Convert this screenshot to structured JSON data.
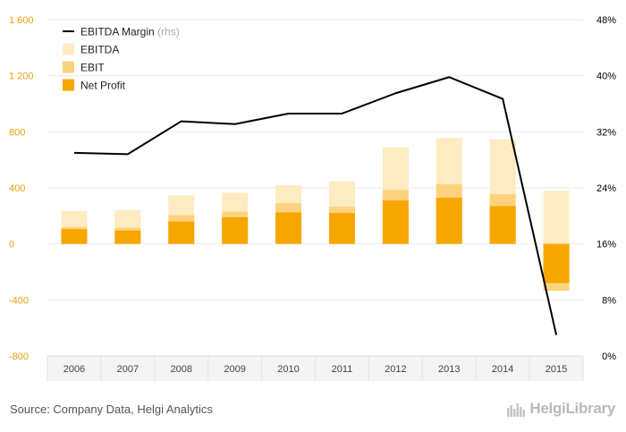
{
  "chart_data": {
    "type": "bar",
    "categories": [
      "2006",
      "2007",
      "2008",
      "2009",
      "2010",
      "2011",
      "2012",
      "2013",
      "2014",
      "2015"
    ],
    "series": [
      {
        "name": "EBITDA",
        "type": "bar",
        "axis": "left",
        "values": [
          235,
          240,
          345,
          365,
          420,
          445,
          690,
          755,
          745,
          380
        ]
      },
      {
        "name": "EBIT",
        "type": "bar",
        "axis": "left",
        "values": [
          120,
          115,
          205,
          230,
          290,
          265,
          385,
          425,
          355,
          -335
        ]
      },
      {
        "name": "Net Profit",
        "type": "bar",
        "axis": "left",
        "values": [
          105,
          95,
          160,
          190,
          225,
          220,
          310,
          330,
          270,
          -280
        ]
      },
      {
        "name": "EBITDA Margin",
        "type": "line",
        "axis": "right",
        "unit": "%",
        "values": [
          29,
          28.8,
          33.5,
          33.1,
          34.6,
          34.6,
          37.5,
          39.8,
          36.7,
          3
        ]
      }
    ],
    "yaxis_left": {
      "min": -800,
      "max": 1600,
      "ticks": [
        -800,
        -400,
        0,
        400,
        800,
        1200,
        1600
      ],
      "tick_labels": [
        "-800",
        "-400",
        "0",
        "400",
        "800",
        "1 200",
        "1 600"
      ]
    },
    "yaxis_right": {
      "min": 0,
      "max": 48,
      "ticks": [
        0,
        8,
        16,
        24,
        32,
        40,
        48
      ],
      "tick_labels": [
        "0%",
        "8%",
        "16%",
        "24%",
        "32%",
        "40%",
        "48%"
      ]
    },
    "legend": {
      "position": "top-left",
      "items": [
        {
          "label": "EBITDA Margin",
          "suffix": "(rhs)",
          "kind": "line",
          "color": "#000000"
        },
        {
          "label": "EBITDA",
          "kind": "box",
          "color": "#FDEBC2"
        },
        {
          "label": "EBIT",
          "kind": "box",
          "color": "#FCD27E"
        },
        {
          "label": "Net Profit",
          "kind": "box",
          "color": "#F7A600"
        }
      ]
    },
    "colors": {
      "ebitda": "#FDEBC2",
      "ebit": "#FCD27E",
      "net_profit": "#F7A600",
      "line": "#000000",
      "left_axis_labels": "#E6A10C",
      "right_axis_labels": "#000000",
      "grid": "#EBEBEB",
      "xaxis_band": "#F4F4F4"
    },
    "title": "",
    "xlabel": "",
    "ylabel": ""
  },
  "footer": {
    "source": "Source: Company Data, Helgi Analytics",
    "brand": "HelgiLibrary"
  }
}
